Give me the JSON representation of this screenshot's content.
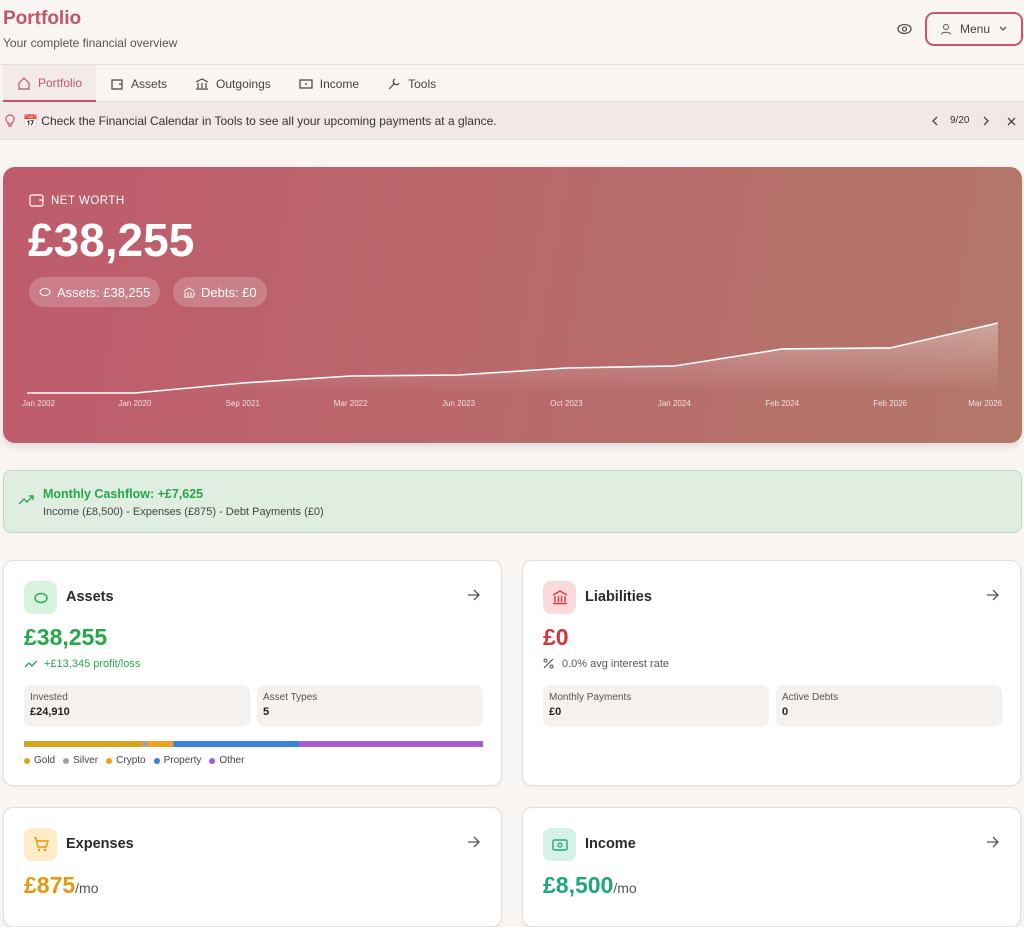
{
  "header": {
    "title": "Portfolio",
    "subtitle": "Your complete financial overview",
    "menu": "Menu"
  },
  "tabs": [
    "Portfolio",
    "Assets",
    "Outgoings",
    "Income",
    "Tools"
  ],
  "banner": {
    "text": "📅 Check the Financial Calendar in Tools to see all your upcoming payments at a glance.",
    "counter": "9/20"
  },
  "net_worth": {
    "label": "NET WORTH",
    "value": "£38,255",
    "assets": "Assets: £38,255",
    "debts": "Debts: £0",
    "chart": {
      "type": "line",
      "x": [
        "Jan 2002",
        "Jan 2020",
        "Sep 2021",
        "Mar 2022",
        "Jun 2023",
        "Oct 2023",
        "Jan 2024",
        "Feb 2024",
        "Feb 2026",
        "Mar 2026"
      ],
      "values": [
        3479,
        3479,
        8449,
        11928,
        12425,
        15904,
        16898,
        25347,
        25844,
        38255
      ]
    }
  },
  "cashflow": {
    "title": "Monthly Cashflow: +£7,625",
    "detail": "Income (£8,500) - Expenses (£875) - Debt Payments (£0)"
  },
  "cards": {
    "assets": {
      "title": "Assets",
      "value": "£38,255",
      "change": "+£13,345 profit/loss",
      "stats": [
        {
          "label": "Invested",
          "value": "£24,910"
        },
        {
          "label": "Asset Types",
          "value": "5"
        }
      ],
      "allocation": [
        {
          "name": "Gold",
          "color": "#d9a521",
          "value": 26
        },
        {
          "name": "Silver",
          "color": "#a0a4aa",
          "value": 1
        },
        {
          "name": "Crypto",
          "color": "#f0a21e",
          "value": 5.5
        },
        {
          "name": "Property",
          "color": "#3b82e0",
          "value": 27.5
        },
        {
          "name": "Other",
          "color": "#a65ad8",
          "value": 40
        }
      ]
    },
    "liabilities": {
      "title": "Liabilities",
      "value": "£0",
      "rate": "0.0% avg interest rate",
      "stats": [
        {
          "label": "Monthly Payments",
          "value": "£0"
        },
        {
          "label": "Active Debts",
          "value": "0"
        }
      ]
    },
    "expenses": {
      "title": "Expenses",
      "value": "£875",
      "unit": "/mo"
    },
    "income": {
      "title": "Income",
      "value": "£8,500",
      "unit": "/mo"
    }
  }
}
